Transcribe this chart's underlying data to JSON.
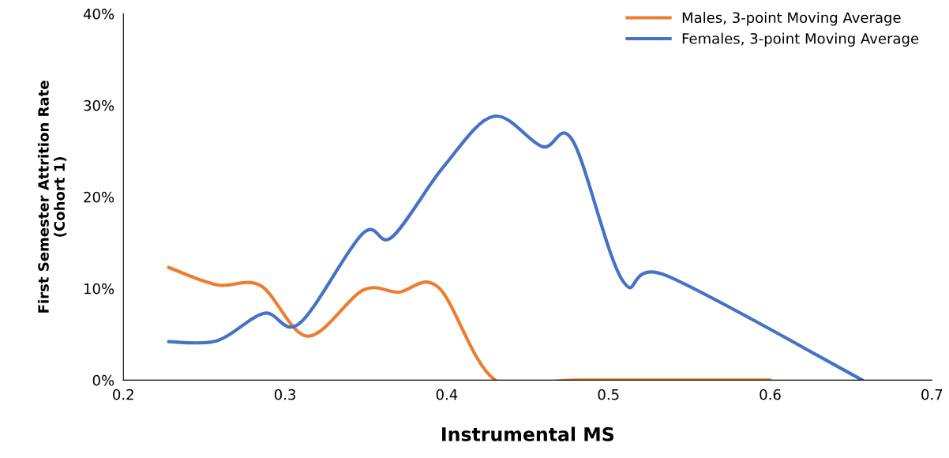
{
  "chart_data": {
    "type": "line",
    "xlabel": "Instrumental MS",
    "ylabel": "First Semester Attrition Rate\n(Cohort 1)",
    "xlim": [
      0.2,
      0.7
    ],
    "xticks": [
      0.2,
      0.3,
      0.4,
      0.5,
      0.6,
      0.7
    ],
    "ylim": [
      0,
      40
    ],
    "yticks": [
      {
        "value": 0,
        "label": "0%"
      },
      {
        "value": 10,
        "label": "10%"
      },
      {
        "value": 20,
        "label": "20%"
      },
      {
        "value": 30,
        "label": "30%"
      },
      {
        "value": 40,
        "label": "40%"
      }
    ],
    "grid": false,
    "legend": "top right",
    "marker": "none",
    "line_style": "solid",
    "series": [
      {
        "name": "Males, 3-point Moving Average",
        "color": "#ed7d31",
        "x": [
          0.228,
          0.258,
          0.285,
          0.314,
          0.348,
          0.37,
          0.395,
          0.43,
          0.48,
          0.6
        ],
        "values": [
          12.3,
          10.4,
          10.3,
          4.8,
          9.8,
          9.6,
          10.1,
          0,
          0,
          0
        ]
      },
      {
        "name": "Females, 3-point Moving Average",
        "color": "#4472c4",
        "x": [
          0.228,
          0.258,
          0.287,
          0.309,
          0.348,
          0.366,
          0.398,
          0.429,
          0.459,
          0.478,
          0.509,
          0.536,
          0.657
        ],
        "values": [
          4.2,
          4.3,
          7.3,
          6.2,
          16.0,
          15.6,
          23.3,
          28.8,
          25.5,
          26.1,
          10.8,
          11.4,
          0
        ]
      }
    ]
  }
}
